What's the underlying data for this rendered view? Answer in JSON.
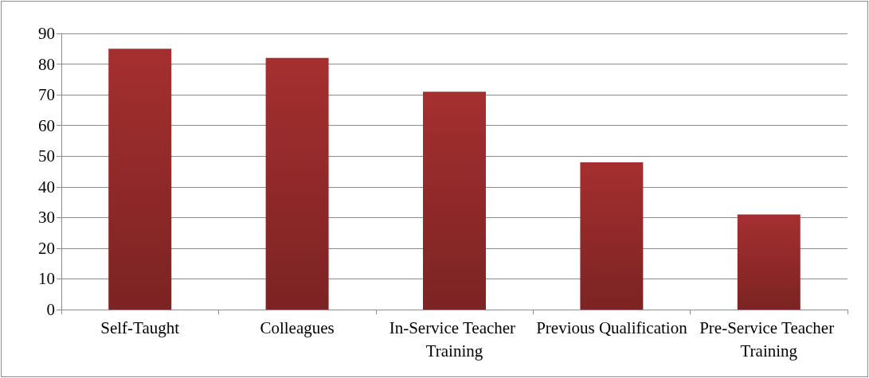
{
  "chart_data": {
    "type": "bar",
    "categories": [
      "Self-Taught",
      "Colleagues",
      "In-Service Teacher Training",
      "Previous Qualification",
      "Pre-Service Teacher Training"
    ],
    "values": [
      85,
      82,
      71,
      48,
      31
    ],
    "color": "#a52f2f",
    "ylim": [
      0,
      90
    ],
    "yticks": [
      0,
      10,
      20,
      30,
      40,
      50,
      60,
      70,
      80,
      90
    ],
    "grid": "y"
  }
}
